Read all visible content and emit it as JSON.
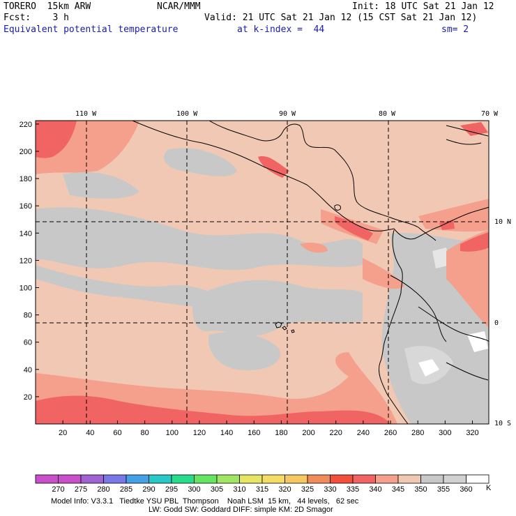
{
  "header": {
    "model": "TORERO  15km ARW",
    "center": "NCAR/MMM",
    "init": "Init: 18 UTC Sat 21 Jan 12",
    "fcst": "Fcst:    3 h",
    "valid": "Valid: 21 UTC Sat 21 Jan 12 (15 CST Sat 21 Jan 12)",
    "field": "Equivalent potential temperature",
    "level": "at k-index =  44",
    "smooth": "sm= 2"
  },
  "map": {
    "lon_labels": [
      "110 W",
      "100 W",
      "90 W",
      "80 W",
      "70 W"
    ],
    "lat_labels": [
      "10 N",
      "0",
      "10 S"
    ],
    "y_ticks": [
      20,
      40,
      60,
      80,
      100,
      120,
      140,
      160,
      180,
      200,
      220
    ],
    "x_ticks": [
      20,
      40,
      60,
      80,
      100,
      120,
      140,
      160,
      180,
      200,
      220,
      240,
      260,
      280,
      300,
      320
    ]
  },
  "colorbar": {
    "labels": [
      "270",
      "275",
      "280",
      "285",
      "290",
      "295",
      "300",
      "305",
      "310",
      "315",
      "320",
      "325",
      "330",
      "335",
      "340",
      "345",
      "350",
      "355",
      "360"
    ],
    "unit": "K",
    "colors": [
      "#c850c8",
      "#a064d2",
      "#7878e6",
      "#46a0e6",
      "#28c8c8",
      "#28dc8c",
      "#64e664",
      "#a0e664",
      "#e6e664",
      "#f5dc64",
      "#f5c864",
      "#f08c5a",
      "#f0503c",
      "#f06464",
      "#f5a08c",
      "#f0c8b4",
      "#c8c8c8",
      "#d2d2d2",
      "#ffffff"
    ]
  },
  "footer": {
    "line1": "Model Info: V3.3.1   Tiedtke YSU PBL  Thompson    Noah LSM  15 km,   44 levels,   62 sec",
    "line2": "LW: Godd SW: Goddard DIFF: simple KM: 2D Smagor"
  },
  "palette": {
    "base": "#f0c8b4",
    "gray": "#c8c8c8",
    "light": "#f5a08c",
    "red": "#f06464",
    "white": "#ffffff",
    "coast": "#000000"
  }
}
